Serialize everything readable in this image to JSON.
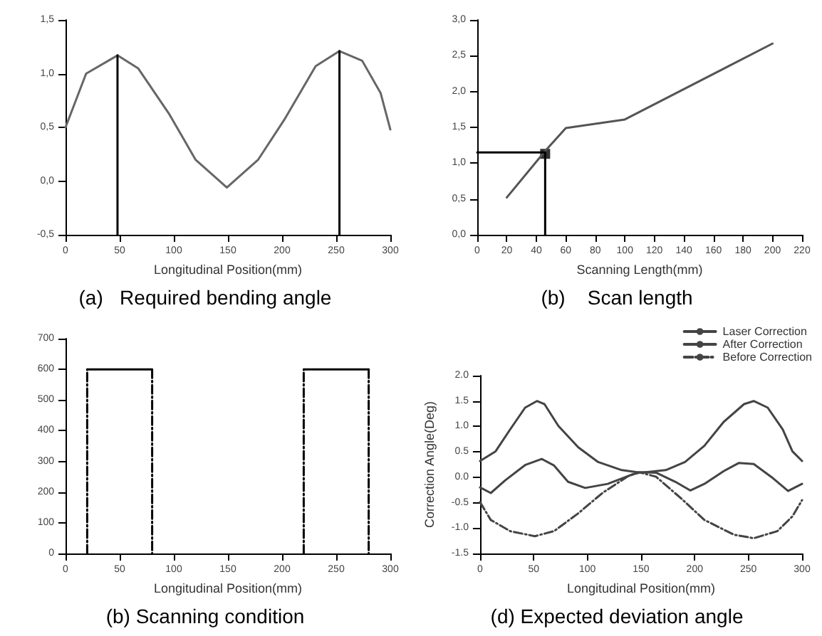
{
  "chart_data": [
    {
      "type": "line",
      "title": "(a)   Required bending angle",
      "xlabel": "Longitudinal Position(mm)",
      "xlim": [
        0,
        300
      ],
      "xticks": [
        0,
        50,
        100,
        150,
        200,
        250,
        300
      ],
      "ylim": [
        -0.5,
        1.5
      ],
      "yticks": [
        {
          "value": -0.5,
          "label": "-0,5"
        },
        {
          "value": 0,
          "label": "0,0"
        },
        {
          "value": 0.5,
          "label": "0,5"
        },
        {
          "value": 1,
          "label": "1,0"
        },
        {
          "value": 1.5,
          "label": "1,5"
        }
      ],
      "marker": "none",
      "line_style": "solid",
      "series": [
        {
          "color": "#666666",
          "x": [
            0,
            19,
            48,
            67,
            96,
            120,
            149,
            178,
            202,
            231,
            253,
            274,
            291,
            300
          ],
          "values": [
            0.5,
            1.0,
            1.17,
            1.05,
            0.62,
            0.2,
            -0.06,
            0.2,
            0.57,
            1.07,
            1.21,
            1.12,
            0.82,
            0.48
          ]
        },
        {
          "color": "#000000",
          "x": [
            48,
            48
          ],
          "values": [
            -0.5,
            1.17
          ]
        },
        {
          "color": "#000000",
          "x": [
            253,
            253
          ],
          "values": [
            -0.5,
            1.21
          ]
        }
      ]
    },
    {
      "type": "line",
      "title": "(b)    Scan length",
      "xlabel": "Scanning Length(mm)",
      "xlim": [
        0,
        220
      ],
      "xticks": [
        0,
        20,
        40,
        60,
        80,
        100,
        120,
        140,
        160,
        180,
        200,
        220
      ],
      "ylim": [
        0,
        3
      ],
      "yticks": [
        {
          "value": 0,
          "label": "0,0"
        },
        {
          "value": 0.5,
          "label": "0,5"
        },
        {
          "value": 1,
          "label": "1,0"
        },
        {
          "value": 1.5,
          "label": "1,5"
        },
        {
          "value": 2,
          "label": "2,0"
        },
        {
          "value": 2.5,
          "label": "2,5"
        },
        {
          "value": 3,
          "label": "3,0"
        }
      ],
      "marker": "none",
      "line_style": "solid",
      "series": [
        {
          "color": "#555555",
          "x": [
            20,
            46,
            60,
            100,
            200
          ],
          "values": [
            0.52,
            1.17,
            1.49,
            1.61,
            2.67
          ]
        },
        {
          "color": "#000000",
          "x": [
            0,
            46,
            46
          ],
          "values": [
            1.15,
            1.15,
            0
          ]
        },
        {
          "type": "scatter",
          "marker": "square",
          "color": "#000000",
          "x": [
            46
          ],
          "values": [
            1.13
          ]
        }
      ]
    },
    {
      "type": "line",
      "title": "(b) Scanning condition",
      "xlabel": "Longitudinal Position(mm)",
      "xlim": [
        0,
        300
      ],
      "xticks": [
        0,
        50,
        100,
        150,
        200,
        250,
        300
      ],
      "ylim": [
        0,
        700
      ],
      "yticks": [
        0,
        100,
        200,
        300,
        400,
        500,
        600,
        700
      ],
      "marker": "none",
      "series": [
        {
          "color": "#000000",
          "line_style": "solid",
          "x": [
            20,
            80,
            150,
            220,
            280
          ],
          "values": [
            600,
            600,
            null,
            600,
            600
          ]
        },
        {
          "color": "#000000",
          "line_style": "dashed",
          "x": [
            20,
            20,
            50,
            80,
            80,
            150,
            220,
            220,
            250,
            280,
            280
          ],
          "values": [
            0,
            600,
            null,
            600,
            0,
            null,
            0,
            600,
            null,
            600,
            0
          ]
        }
      ]
    },
    {
      "type": "line",
      "title": "(d) Expected deviation angle",
      "xlabel": "Longitudinal Position(mm)",
      "ylabel": "Correction Angle(Deg)",
      "xlim": [
        0,
        300
      ],
      "xticks": [
        0,
        50,
        100,
        150,
        200,
        250,
        300
      ],
      "ylim": [
        -1.5,
        2.0
      ],
      "yticks": [
        {
          "value": -1.5,
          "label": "-1.5"
        },
        {
          "value": -1,
          "label": "-1.0"
        },
        {
          "value": -0.5,
          "label": "-0.5"
        },
        {
          "value": 0,
          "label": "0.0"
        },
        {
          "value": 0.5,
          "label": "0.5"
        },
        {
          "value": 1,
          "label": "1.0"
        },
        {
          "value": 1.5,
          "label": "1.5"
        },
        {
          "value": 2,
          "label": "2.0"
        }
      ],
      "legend": "top right",
      "marker": "none",
      "series": [
        {
          "name": "Laser Correction",
          "color": "#444444",
          "line_style": "solid",
          "x": [
            0,
            14.5,
            28,
            42,
            53,
            60,
            73,
            91.5,
            110,
            132,
            150,
            173,
            191,
            209,
            227,
            246,
            255,
            268,
            282,
            291,
            300
          ],
          "values": [
            0.32,
            0.51,
            0.94,
            1.37,
            1.5,
            1.44,
            1.01,
            0.59,
            0.3,
            0.14,
            0.09,
            0.14,
            0.3,
            0.62,
            1.09,
            1.44,
            1.5,
            1.37,
            0.94,
            0.51,
            0.32
          ]
        },
        {
          "name": "After Correction",
          "color": "#444444",
          "line_style": "solid",
          "x": [
            0,
            10,
            23.5,
            42,
            57.5,
            69,
            82,
            98,
            119,
            141,
            150,
            164,
            182,
            196,
            209,
            227,
            241,
            255,
            273,
            287,
            300
          ],
          "values": [
            -0.2,
            -0.31,
            -0.06,
            0.24,
            0.36,
            0.23,
            -0.09,
            -0.21,
            -0.13,
            0.05,
            0.1,
            0.09,
            -0.09,
            -0.26,
            -0.13,
            0.12,
            0.28,
            0.26,
            -0.02,
            -0.27,
            -0.13
          ]
        },
        {
          "name": "Before Correction",
          "color": "#444444",
          "line_style": "dashed",
          "x": [
            0,
            10,
            28,
            51,
            69,
            91.5,
            114,
            137,
            148,
            164,
            187,
            209,
            236.5,
            255,
            277,
            291,
            300
          ],
          "values": [
            -0.49,
            -0.84,
            -1.06,
            -1.16,
            -1.06,
            -0.71,
            -0.31,
            0.01,
            0.1,
            0.01,
            -0.41,
            -0.84,
            -1.13,
            -1.2,
            -1.06,
            -0.77,
            -0.45
          ]
        }
      ]
    }
  ]
}
